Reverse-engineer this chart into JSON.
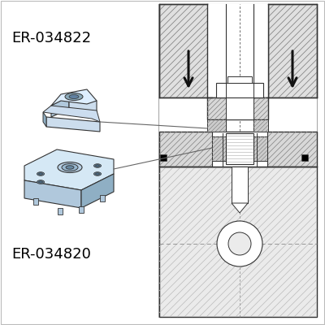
{
  "bg_color": "#ffffff",
  "label1": "ER-034822",
  "label2": "ER-034820",
  "part_color_light": "#ccdded",
  "part_color_mid": "#b0c8dc",
  "part_color_dark": "#8fafc4",
  "hatch_fill": "#e0e0e0",
  "hatch_line": "#888888",
  "edge_color": "#333333",
  "bottom_hatch_fill": "#ebebeb",
  "bottom_hatch_line": "#bbbbbb",
  "arrow_color": "#111111",
  "connector_color": "#666666",
  "label_fontsize": 13,
  "lw": 1.0
}
